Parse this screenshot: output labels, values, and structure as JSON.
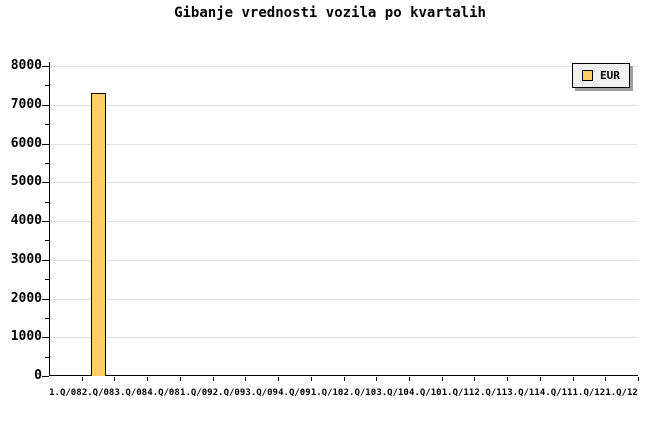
{
  "title": "Gibanje vrednosti vozila po kvartalih",
  "legend": {
    "items": [
      {
        "label": "EUR",
        "color": "#ffcc66"
      }
    ]
  },
  "chart_data": {
    "type": "bar",
    "title": "Gibanje vrednosti vozila po kvartalih",
    "categories": [
      "1.Q/08",
      "2.Q/08",
      "3.Q/08",
      "4.Q/08",
      "1.Q/09",
      "2.Q/09",
      "3.Q/09",
      "4.Q/09",
      "1.Q/10",
      "2.Q/10",
      "3.Q/10",
      "4.Q/10",
      "1.Q/11",
      "2.Q/11",
      "3.Q/11",
      "4.Q/11",
      "1.Q/12",
      "1.Q/12"
    ],
    "series": [
      {
        "name": "EUR",
        "color": "#ffcc66",
        "values": [
          null,
          7300,
          null,
          null,
          null,
          null,
          null,
          null,
          null,
          null,
          null,
          null,
          null,
          null,
          null,
          null,
          null,
          null
        ]
      }
    ],
    "xlabel": "",
    "ylabel": "",
    "ylim": [
      0,
      8200
    ],
    "y_tick_max": 8000,
    "y_major_tick_interval": 1000,
    "y_minor_tick_interval": 500,
    "y_tick_labels": [
      "0",
      "1000",
      "2000",
      "3000",
      "4000",
      "5000",
      "6000",
      "7000",
      "8000"
    ],
    "grid": "horizontal",
    "legend_position": "top-right",
    "colors": {
      "background": "#ffffff",
      "bar_fill": "#ffcc66",
      "bar_border": "#000000",
      "grid": "#e0e0e0",
      "axis": "#000000",
      "text": "#000000",
      "legend_bg": "#f0f0f0",
      "legend_border": "#000000",
      "legend_shadow": "#a0a0a0"
    }
  }
}
